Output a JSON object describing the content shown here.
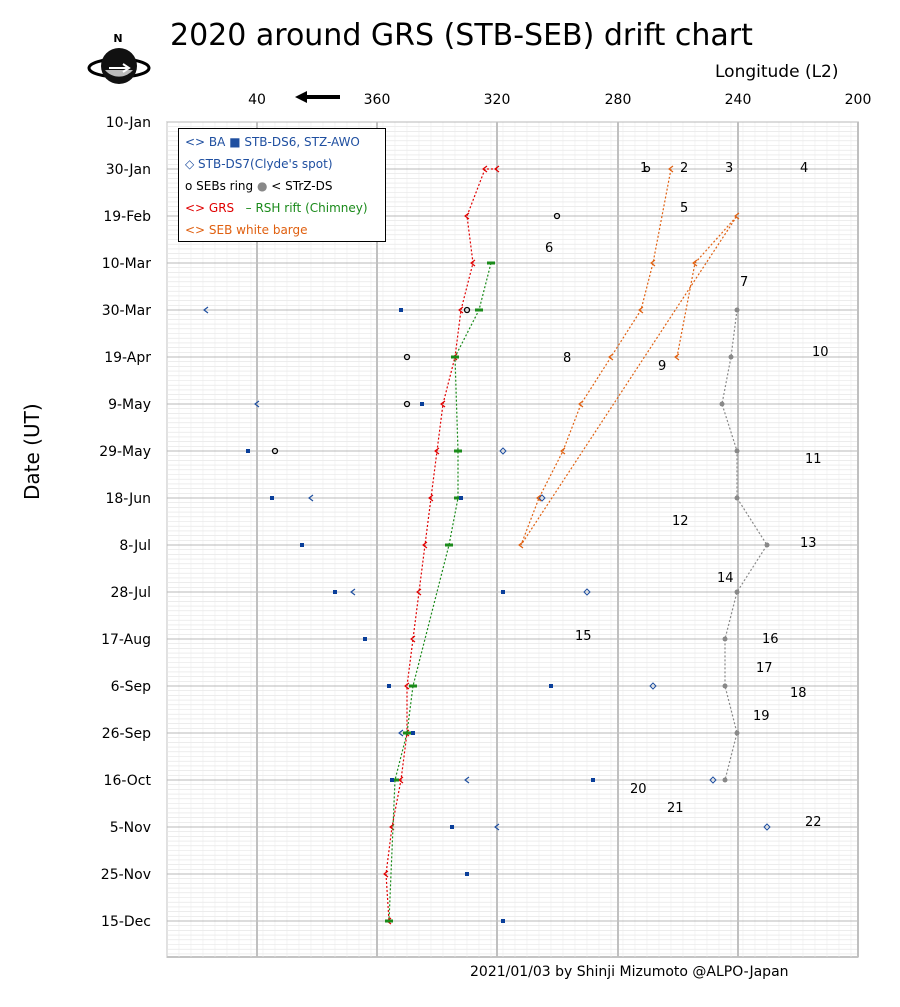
{
  "chart_data": {
    "type": "scatter",
    "title": "2020 around GRS (STB-SEB) drift chart",
    "xlabel": "Longitude (L2)",
    "ylabel": "Date (UT)",
    "x_ticks": [
      "40",
      "360",
      "320",
      "280",
      "240",
      "200"
    ],
    "y_ticks": [
      "10-Jan",
      "30-Jan",
      "19-Feb",
      "10-Mar",
      "30-Mar",
      "19-Apr",
      "9-May",
      "29-May",
      "18-Jun",
      "8-Jul",
      "28-Jul",
      "17-Aug",
      "6-Sep",
      "26-Sep",
      "16-Oct",
      "5-Nov",
      "25-Nov",
      "15-Dec"
    ],
    "grid": true,
    "legend_position": "top-left",
    "legend": [
      "<> BA",
      "STB-DS6, STZ-AWO",
      "◇ STB-DS7(Clyde's spot)",
      "SEBs ring",
      "< STrZ-DS",
      "<> GRS",
      "RSH rift (Chimney)",
      "<> SEB white barge"
    ],
    "annotations": [
      "1",
      "2",
      "3",
      "4",
      "5",
      "6",
      "7",
      "8",
      "9",
      "10",
      "11",
      "12",
      "13",
      "14",
      "15",
      "16",
      "17",
      "18",
      "19",
      "20",
      "21",
      "22"
    ],
    "credit": "2021/01/03  by Shinji Mizumoto @ALPO-Japan",
    "colors": {
      "ba": "#1f4fa0",
      "ds6": "#0a3f9a",
      "ds7": "#1f4fa0",
      "seb_ring": "#000000",
      "strz": "#888888",
      "grs": "#e00000",
      "rsh": "#1a8a1a",
      "barge": "#e06010",
      "awo": "#2a9ad8"
    },
    "series": [
      {
        "name": "GRS",
        "marker": "<>",
        "color": "#e00000",
        "points": [
          [
            320,
            "30-Jan"
          ],
          [
            324,
            "30-Jan"
          ],
          [
            330,
            "19-Feb"
          ],
          [
            328,
            "10-Mar"
          ],
          [
            332,
            "30-Mar"
          ],
          [
            334,
            "19-Apr"
          ],
          [
            338,
            "9-May"
          ],
          [
            340,
            "29-May"
          ],
          [
            342,
            "18-Jun"
          ],
          [
            344,
            "8-Jul"
          ],
          [
            346,
            "28-Jul"
          ],
          [
            348,
            "17-Aug"
          ],
          [
            350,
            "6-Sep"
          ],
          [
            350,
            "26-Sep"
          ],
          [
            352,
            "16-Oct"
          ],
          [
            355,
            "5-Nov"
          ],
          [
            357,
            "25-Nov"
          ],
          [
            356,
            "15-Dec"
          ]
        ]
      },
      {
        "name": "RSH rift (Chimney)",
        "marker": "-",
        "color": "#1a8a1a",
        "points": [
          [
            322,
            "10-Mar"
          ],
          [
            326,
            "30-Mar"
          ],
          [
            334,
            "19-Apr"
          ],
          [
            333,
            "29-May"
          ],
          [
            333,
            "18-Jun"
          ],
          [
            336,
            "8-Jul"
          ],
          [
            348,
            "6-Sep"
          ],
          [
            350,
            "26-Sep"
          ],
          [
            354,
            "16-Oct"
          ],
          [
            356,
            "15-Dec"
          ]
        ]
      },
      {
        "name": "STB-DS6, STZ-AWO",
        "marker": "square",
        "color": "#0a3f9a",
        "points": [
          [
            43,
            "29-May"
          ],
          [
            35,
            "18-Jun"
          ],
          [
            25,
            "8-Jul"
          ],
          [
            14,
            "28-Jul"
          ],
          [
            4,
            "17-Aug"
          ],
          [
            356,
            "6-Sep"
          ],
          [
            348,
            "26-Sep"
          ],
          [
            355,
            "16-Oct"
          ],
          [
            335,
            "5-Nov"
          ],
          [
            330,
            "25-Nov"
          ],
          [
            318,
            "15-Dec"
          ],
          [
            352,
            "30-Mar"
          ],
          [
            345,
            "9-May"
          ],
          [
            332,
            "18-Jun"
          ],
          [
            318,
            "28-Jul"
          ],
          [
            302,
            "6-Sep"
          ],
          [
            288,
            "16-Oct"
          ]
        ]
      },
      {
        "name": "BA",
        "marker": "<>",
        "color": "#1f4fa0",
        "points": [
          [
            57,
            "30-Mar"
          ],
          [
            40,
            "9-May"
          ],
          [
            22,
            "18-Jun"
          ],
          [
            8,
            "28-Jul"
          ],
          [
            352,
            "26-Sep"
          ],
          [
            330,
            "16-Oct"
          ],
          [
            320,
            "5-Nov"
          ]
        ]
      },
      {
        "name": "STB-DS7(Clyde's spot)",
        "marker": "diamond",
        "color": "#1f4fa0",
        "points": [
          [
            318,
            "29-May"
          ],
          [
            305,
            "18-Jun"
          ],
          [
            290,
            "28-Jul"
          ],
          [
            268,
            "6-Sep"
          ],
          [
            248,
            "16-Oct"
          ],
          [
            230,
            "5-Nov"
          ]
        ]
      },
      {
        "name": "SEBs ring",
        "marker": "circle",
        "color": "#000000",
        "points": [
          [
            330,
            "30-Mar"
          ],
          [
            350,
            "19-Apr"
          ],
          [
            350,
            "9-May"
          ],
          [
            34,
            "29-May"
          ],
          [
            300,
            "19-Feb"
          ],
          [
            270,
            "30-Jan"
          ]
        ]
      },
      {
        "name": "STrZ-DS",
        "marker": "<",
        "color": "#888888",
        "points": [
          [
            240,
            "30-Mar"
          ],
          [
            242,
            "19-Apr"
          ],
          [
            245,
            "9-May"
          ],
          [
            240,
            "29-May"
          ],
          [
            240,
            "18-Jun"
          ],
          [
            230,
            "8-Jul"
          ],
          [
            240,
            "28-Jul"
          ],
          [
            244,
            "17-Aug"
          ],
          [
            244,
            "6-Sep"
          ],
          [
            240,
            "26-Sep"
          ],
          [
            244,
            "16-Oct"
          ]
        ]
      },
      {
        "name": "SEB white barge",
        "marker": "<>",
        "color": "#e06010",
        "points": [
          [
            262,
            "30-Jan"
          ],
          [
            268,
            "10-Mar"
          ],
          [
            272,
            "30-Mar"
          ],
          [
            282,
            "19-Apr"
          ],
          [
            292,
            "9-May"
          ],
          [
            298,
            "29-May"
          ],
          [
            306,
            "18-Jun"
          ],
          [
            312,
            "8-Jul"
          ],
          [
            240,
            "19-Feb"
          ],
          [
            254,
            "10-Mar"
          ],
          [
            260,
            "19-Apr"
          ]
        ]
      }
    ]
  },
  "compass": {
    "label": "N"
  }
}
